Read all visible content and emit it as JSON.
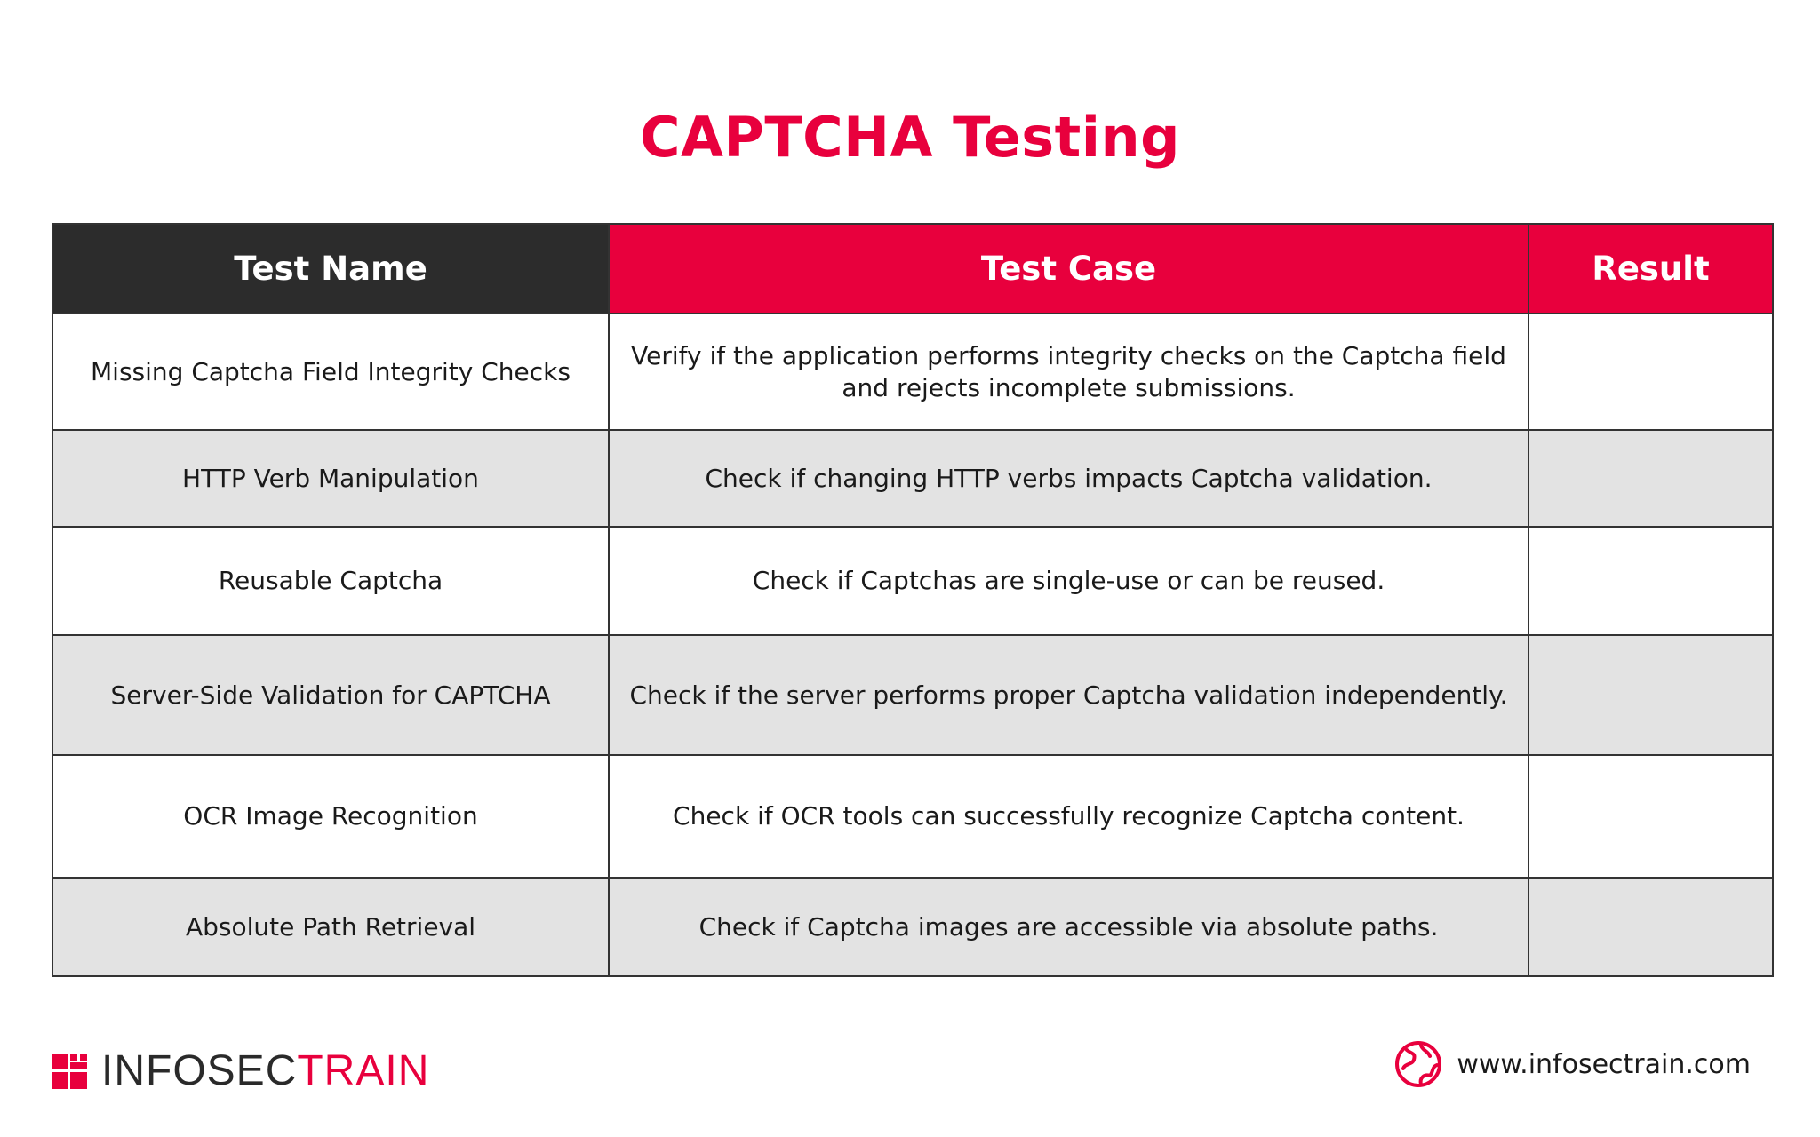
{
  "title": "CAPTCHA Testing",
  "table": {
    "headers": {
      "name": "Test Name",
      "case": "Test Case",
      "result": "Result"
    },
    "rows": [
      {
        "name": "Missing Captcha Field Integrity Checks",
        "case": "Verify if the application performs integrity checks on the Captcha field and rejects incomplete submissions.",
        "result": ""
      },
      {
        "name": "HTTP Verb Manipulation",
        "case": "Check if changing HTTP verbs impacts Captcha validation.",
        "result": ""
      },
      {
        "name": "Reusable Captcha",
        "case": "Check if Captchas are single-use or can be reused.",
        "result": ""
      },
      {
        "name": "Server-Side Validation for CAPTCHA",
        "case": "Check if the server performs proper Captcha validation independently.",
        "result": ""
      },
      {
        "name": "OCR Image Recognition",
        "case": "Check if OCR tools can successfully recognize Captcha content.",
        "result": ""
      },
      {
        "name": "Absolute Path Retrieval",
        "case": "Check if Captcha images are accessible via absolute paths.",
        "result": ""
      }
    ]
  },
  "footer": {
    "brand_part1": "INFOSEC",
    "brand_part2": "TRAIN",
    "website": "www.infosectrain.com",
    "brand_icon": "infosectrain-logo-icon",
    "globe_icon": "globe-icon"
  },
  "colors": {
    "accent": "#e8003d",
    "header_dark": "#2c2c2c",
    "row_alt": "#e3e3e3"
  }
}
